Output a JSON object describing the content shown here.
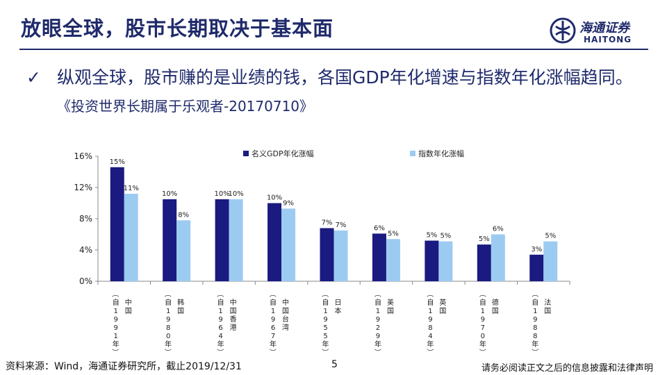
{
  "header": {
    "title": "放眼全球，股市长期取决于基本面",
    "logo_cn": "海通证券",
    "logo_en": "HAITONG"
  },
  "bullet": {
    "check_icon": "checkmark-icon",
    "text": "纵观全球，股市赚的是业绩的钱，各国GDP年化增速与指数年化涨幅趋同。",
    "source": "《投资世界长期属于乐观者-20170710》"
  },
  "chart_data": {
    "type": "bar",
    "categories": [
      "中国（自1991年）",
      "韩国（自1980年）",
      "中国香港（自1964年）",
      "中国台湾（自1967年）",
      "日本（自1955年）",
      "美国（自1929年）",
      "英国（自1984年）",
      "德国（自1970年）",
      "法国（自1988年）"
    ],
    "category_country": [
      "中国",
      "韩国",
      "中国香港",
      "中国台湾",
      "日本",
      "美国",
      "英国",
      "德国",
      "法国"
    ],
    "category_since": [
      "1991",
      "1980",
      "1964",
      "1967",
      "1955",
      "1929",
      "1984",
      "1970",
      "1988"
    ],
    "series": [
      {
        "name": "名义GDP年化涨幅",
        "color": "#1a1a80",
        "values": [
          14.6,
          10.5,
          10.5,
          10.0,
          6.8,
          6.1,
          5.2,
          4.7,
          3.4
        ],
        "labels": [
          "15%",
          "10%",
          "10%",
          "10%",
          "7%",
          "6%",
          "5%",
          "5%",
          "3%"
        ]
      },
      {
        "name": "指数年化涨幅",
        "color": "#9ccbf2",
        "values": [
          11.2,
          7.8,
          10.5,
          9.3,
          6.5,
          5.4,
          5.1,
          6.0,
          5.1
        ],
        "labels": [
          "11%",
          "8%",
          "10%",
          "9%",
          "7%",
          "5%",
          "5%",
          "6%",
          "5%"
        ]
      }
    ],
    "ylim": [
      0,
      16
    ],
    "yticks": [
      "0%",
      "4%",
      "8%",
      "12%",
      "16%"
    ],
    "legend_position": "top",
    "grid": false
  },
  "footer": {
    "source": "资料来源：Wind，海通证券研究所，截止2019/12/31",
    "page": "5",
    "disclaimer": "请务必阅读正文之后的信息披露和法律声明"
  }
}
